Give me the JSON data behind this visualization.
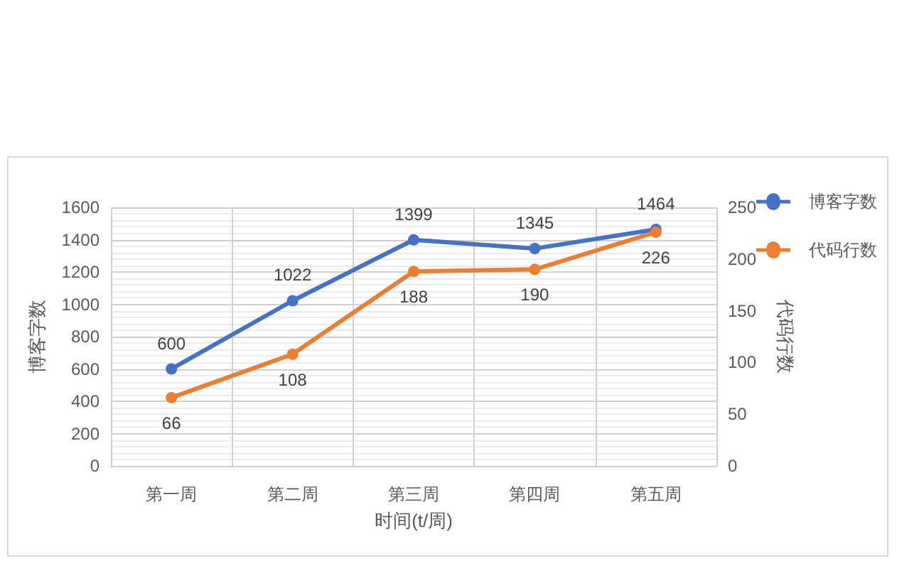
{
  "chart_data": {
    "type": "line",
    "xlabel": "时间(t/周)",
    "ylabel": "博客字数",
    "y2label": "代码行数",
    "categories": [
      "第一周",
      "第二周",
      "第三周",
      "第四周",
      "第五周"
    ],
    "series": [
      {
        "name": "博客字数",
        "color": "#4472c4",
        "values": [
          600,
          1022,
          1399,
          1345,
          1464
        ]
      },
      {
        "name": "代码行数",
        "color": "#ed7d31",
        "axis": "y2",
        "values": [
          66,
          108,
          188,
          190,
          226
        ]
      }
    ],
    "ylim": [
      0,
      1600
    ],
    "yticks": [
      0,
      200,
      400,
      600,
      800,
      1000,
      1200,
      1400,
      1600
    ],
    "y2lim": [
      0,
      250
    ],
    "y2ticks": [
      0,
      50,
      100,
      150,
      200,
      250
    ],
    "data_labels": true,
    "grid": true,
    "legend": "top right",
    "marker": "circle",
    "line_style": "solid"
  }
}
